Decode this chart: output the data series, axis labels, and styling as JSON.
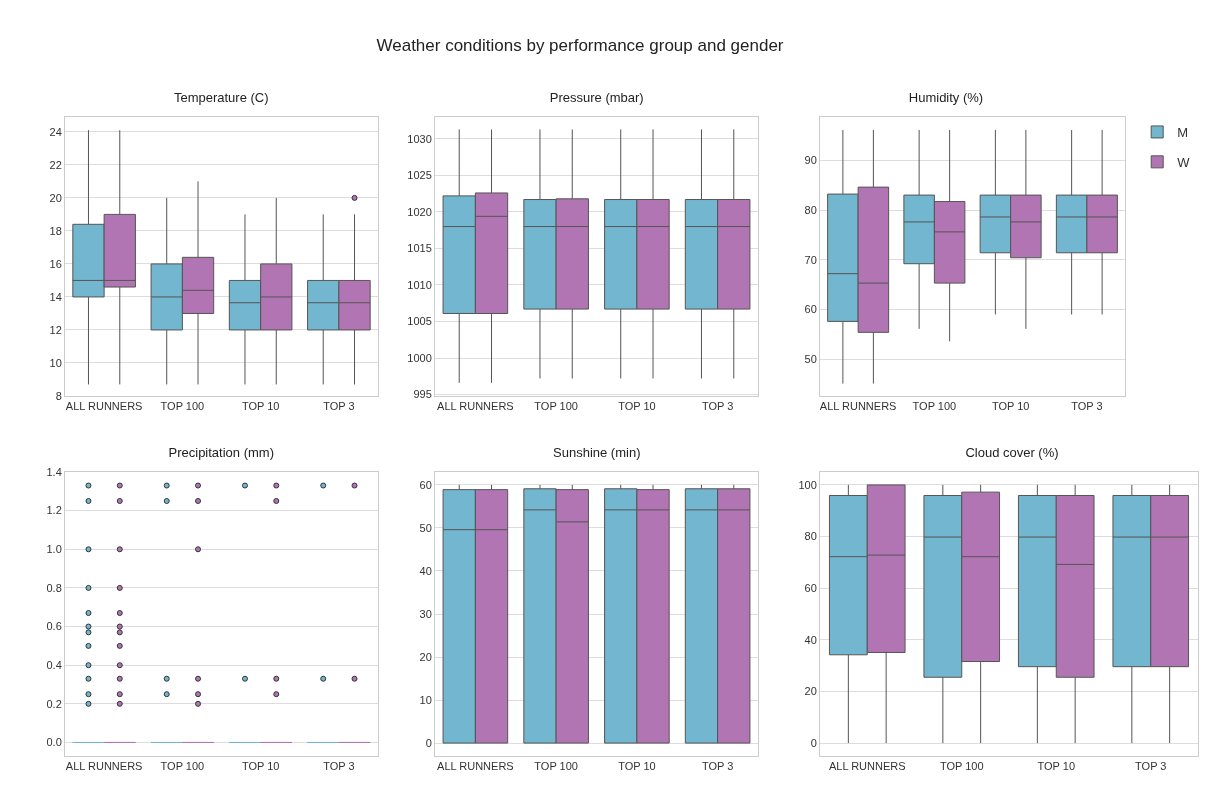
{
  "chart_data": [
    {
      "type": "other",
      "title": "Weather conditions by performance group and gender"
    },
    {
      "type": "box",
      "title": "Temperature (C)",
      "categories": [
        "ALL RUNNERS",
        "TOP 100",
        "TOP 10",
        "TOP 3"
      ],
      "ylim": [
        8,
        24.9
      ],
      "yticks": [
        8,
        10,
        12,
        14,
        16,
        18,
        20,
        22,
        24
      ],
      "grid": "y",
      "legend": false,
      "series": [
        {
          "color": "#72b6cf",
          "boxes": [
            {
              "low": 8.7,
              "q1": 14,
              "median": 15,
              "q3": 18.4,
              "high": 24.1
            },
            {
              "low": 8.7,
              "q1": 12,
              "median": 14,
              "q3": 16,
              "high": 20
            },
            {
              "low": 8.7,
              "q1": 12,
              "median": 13.65,
              "q3": 15,
              "high": 19
            },
            {
              "low": 8.7,
              "q1": 12,
              "median": 13.65,
              "q3": 15,
              "high": 19
            }
          ]
        },
        {
          "color": "#b175b3",
          "boxes": [
            {
              "low": 8.7,
              "q1": 14.6,
              "median": 15,
              "q3": 19,
              "high": 24.1
            },
            {
              "low": 8.7,
              "q1": 13,
              "median": 14.4,
              "q3": 16.4,
              "high": 21
            },
            {
              "low": 8.7,
              "q1": 12,
              "median": 14,
              "q3": 16,
              "high": 20
            },
            {
              "low": 8.7,
              "q1": 12,
              "median": 13.65,
              "q3": 15,
              "high": 19,
              "outliers": [
                20
              ]
            }
          ]
        }
      ]
    },
    {
      "type": "box",
      "title": "Pressure (mbar)",
      "categories": [
        "ALL RUNNERS",
        "TOP 100",
        "TOP 10",
        "TOP 3"
      ],
      "ylim": [
        994.8,
        1033
      ],
      "yticks": [
        995,
        1000,
        1005,
        1010,
        1015,
        1020,
        1025,
        1030
      ],
      "grid": "y",
      "legend": false,
      "series": [
        {
          "color": "#72b6cf",
          "boxes": [
            {
              "low": 996.6,
              "q1": 1006.1,
              "median": 1018,
              "q3": 1022.2,
              "high": 1031.3
            },
            {
              "low": 997.2,
              "q1": 1006.7,
              "median": 1018,
              "q3": 1021.7,
              "high": 1031.3
            },
            {
              "low": 997.2,
              "q1": 1006.7,
              "median": 1018,
              "q3": 1021.7,
              "high": 1031.3
            },
            {
              "low": 997.2,
              "q1": 1006.7,
              "median": 1018,
              "q3": 1021.7,
              "high": 1031.3
            }
          ]
        },
        {
          "color": "#b175b3",
          "boxes": [
            {
              "low": 996.6,
              "q1": 1006.1,
              "median": 1019.4,
              "q3": 1022.6,
              "high": 1031.3
            },
            {
              "low": 997.2,
              "q1": 1006.7,
              "median": 1018,
              "q3": 1021.8,
              "high": 1031.3
            },
            {
              "low": 997.2,
              "q1": 1006.7,
              "median": 1018,
              "q3": 1021.7,
              "high": 1031.3
            },
            {
              "low": 997.2,
              "q1": 1006.7,
              "median": 1018,
              "q3": 1021.7,
              "high": 1031.3
            }
          ]
        }
      ]
    },
    {
      "type": "box",
      "title": "Humidity (%)",
      "categories": [
        "ALL RUNNERS",
        "TOP 100",
        "TOP 10",
        "TOP 3"
      ],
      "ylim": [
        42.6,
        98.7
      ],
      "yticks": [
        50,
        60,
        70,
        80,
        90
      ],
      "grid": "y",
      "legend": "right",
      "series": [
        {
          "name": "M",
          "color": "#72b6cf",
          "boxes": [
            {
              "low": 45.1,
              "q1": 57.6,
              "median": 67.2,
              "q3": 83.2,
              "high": 96.1
            },
            {
              "low": 56.1,
              "q1": 69.2,
              "median": 77.6,
              "q3": 83,
              "high": 96.1
            },
            {
              "low": 59,
              "q1": 71.4,
              "median": 78.6,
              "q3": 83,
              "high": 96.1
            },
            {
              "low": 59,
              "q1": 71.4,
              "median": 78.6,
              "q3": 83,
              "high": 96.1
            }
          ]
        },
        {
          "name": "W",
          "color": "#b175b3",
          "boxes": [
            {
              "low": 45.1,
              "q1": 55.4,
              "median": 65.3,
              "q3": 84.6,
              "high": 96.1
            },
            {
              "low": 53.6,
              "q1": 65.3,
              "median": 75.6,
              "q3": 81.7,
              "high": 96.1
            },
            {
              "low": 56.1,
              "q1": 70.4,
              "median": 77.6,
              "q3": 83,
              "high": 96.1
            },
            {
              "low": 59,
              "q1": 71.4,
              "median": 78.6,
              "q3": 83,
              "high": 96.1
            }
          ]
        }
      ]
    },
    {
      "type": "box",
      "title": "Precipitation (mm)",
      "categories": [
        "ALL RUNNERS",
        "TOP 100",
        "TOP 10",
        "TOP 3"
      ],
      "ylim": [
        -0.07,
        1.4
      ],
      "yticks": [
        {
          "value": 0,
          "label": "0.0"
        },
        0.2,
        0.4,
        0.6,
        0.8,
        {
          "value": 1,
          "label": "1.0"
        },
        1.2,
        1.4
      ],
      "grid": "y",
      "legend": false,
      "series": [
        {
          "color": "#72b6cf",
          "boxes": [
            {
              "low": 0,
              "q1": 0,
              "median": 0,
              "q3": 0,
              "high": 0,
              "outliers": [
                1.33,
                1.25,
                1,
                0.8,
                0.67,
                0.6,
                0.57,
                0.5,
                0.4,
                0.33,
                0.25,
                0.2
              ]
            },
            {
              "low": 0,
              "q1": 0,
              "median": 0,
              "q3": 0,
              "high": 0,
              "outliers": [
                1.33,
                1.25,
                0.33,
                0.25
              ]
            },
            {
              "low": 0,
              "q1": 0,
              "median": 0,
              "q3": 0,
              "high": 0,
              "outliers": [
                1.33,
                0.33
              ]
            },
            {
              "low": 0,
              "q1": 0,
              "median": 0,
              "q3": 0,
              "high": 0,
              "outliers": [
                1.33,
                0.33
              ]
            }
          ]
        },
        {
          "color": "#b175b3",
          "boxes": [
            {
              "low": 0,
              "q1": 0,
              "median": 0,
              "q3": 0,
              "high": 0,
              "outliers": [
                1.33,
                1.25,
                1,
                0.8,
                0.67,
                0.6,
                0.57,
                0.5,
                0.4,
                0.33,
                0.25,
                0.2
              ]
            },
            {
              "low": 0,
              "q1": 0,
              "median": 0,
              "q3": 0,
              "high": 0,
              "outliers": [
                1.33,
                1.25,
                1,
                0.33,
                0.25,
                0.2
              ]
            },
            {
              "low": 0,
              "q1": 0,
              "median": 0,
              "q3": 0,
              "high": 0,
              "outliers": [
                1.33,
                1.25,
                0.33,
                0.25
              ]
            },
            {
              "low": 0,
              "q1": 0,
              "median": 0,
              "q3": 0,
              "high": 0,
              "outliers": [
                1.33,
                0.33
              ]
            }
          ]
        }
      ]
    },
    {
      "type": "box",
      "title": "Sunshine (min)",
      "categories": [
        "ALL RUNNERS",
        "TOP 100",
        "TOP 10",
        "TOP 3"
      ],
      "ylim": [
        -3,
        63
      ],
      "yticks": [
        0,
        10,
        20,
        30,
        40,
        50,
        60
      ],
      "grid": "y",
      "legend": false,
      "series": [
        {
          "color": "#72b6cf",
          "boxes": [
            {
              "low": 0,
              "q1": 0,
              "median": 49.6,
              "q3": 58.9,
              "high": 60
            },
            {
              "low": 0,
              "q1": 0,
              "median": 54.2,
              "q3": 59.1,
              "high": 60
            },
            {
              "low": 0,
              "q1": 0,
              "median": 54.2,
              "q3": 59.1,
              "high": 60
            },
            {
              "low": 0,
              "q1": 0,
              "median": 54.2,
              "q3": 59.1,
              "high": 60
            }
          ]
        },
        {
          "color": "#b175b3",
          "boxes": [
            {
              "low": 0,
              "q1": 0,
              "median": 49.6,
              "q3": 58.9,
              "high": 60
            },
            {
              "low": 0,
              "q1": 0,
              "median": 51.4,
              "q3": 58.9,
              "high": 60
            },
            {
              "low": 0,
              "q1": 0,
              "median": 54.2,
              "q3": 58.9,
              "high": 60
            },
            {
              "low": 0,
              "q1": 0,
              "median": 54.2,
              "q3": 59.1,
              "high": 60
            }
          ]
        }
      ]
    },
    {
      "type": "box",
      "title": "Cloud cover (%)",
      "categories": [
        "ALL RUNNERS",
        "TOP 100",
        "TOP 10",
        "TOP 3"
      ],
      "ylim": [
        -5,
        105
      ],
      "yticks": [
        0,
        20,
        40,
        60,
        80,
        100
      ],
      "grid": "y",
      "legend": false,
      "series": [
        {
          "color": "#72b6cf",
          "boxes": [
            {
              "low": 0,
              "q1": 34.2,
              "median": 72.2,
              "q3": 95.9,
              "high": 100
            },
            {
              "low": 0,
              "q1": 25.5,
              "median": 79.8,
              "q3": 95.9,
              "high": 100
            },
            {
              "low": 0,
              "q1": 29.6,
              "median": 79.8,
              "q3": 95.9,
              "high": 100
            },
            {
              "low": 0,
              "q1": 29.6,
              "median": 79.8,
              "q3": 95.9,
              "high": 100
            }
          ]
        },
        {
          "color": "#b175b3",
          "boxes": [
            {
              "low": 0,
              "q1": 35.1,
              "median": 72.8,
              "q3": 100,
              "high": 100
            },
            {
              "low": 0,
              "q1": 31.6,
              "median": 72.2,
              "q3": 97.2,
              "high": 100
            },
            {
              "low": 0,
              "q1": 25.5,
              "median": 69.2,
              "q3": 95.9,
              "high": 100
            },
            {
              "low": 0,
              "q1": 29.6,
              "median": 79.8,
              "q3": 95.9,
              "high": 100
            }
          ]
        }
      ]
    }
  ]
}
